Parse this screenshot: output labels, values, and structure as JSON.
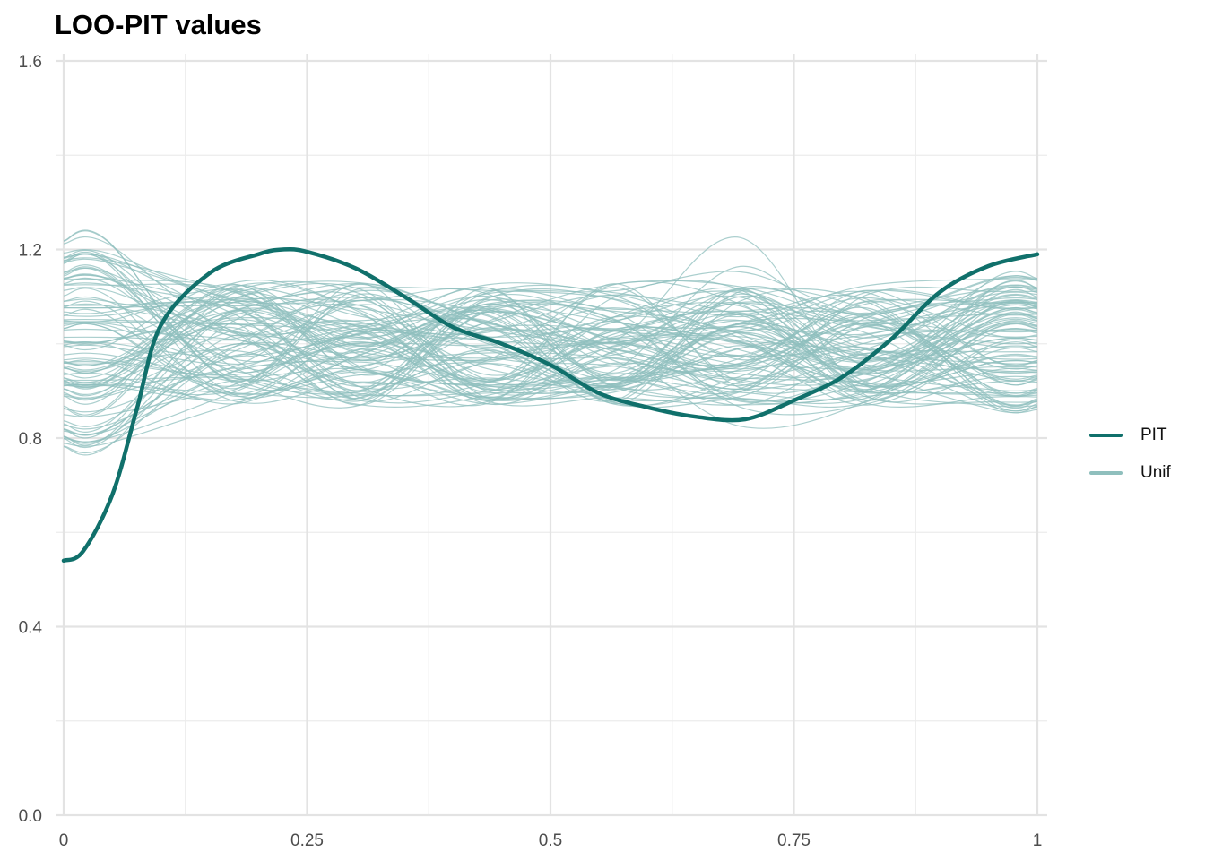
{
  "chart_data": {
    "type": "line",
    "title": "LOO-PIT values",
    "xlabel": "",
    "ylabel": "",
    "xlim": [
      0,
      1
    ],
    "ylim": [
      0,
      1.6
    ],
    "x_ticks": [
      0,
      0.25,
      0.5,
      0.75,
      1
    ],
    "x_tick_labels": [
      "0",
      "0.25",
      "0.5",
      "0.75",
      "1"
    ],
    "y_ticks": [
      0,
      0.4,
      0.8,
      1.2,
      1.6
    ],
    "y_tick_labels": [
      "0.0",
      "0.4",
      "0.8",
      "1.2",
      "1.6"
    ],
    "grid": true,
    "legend_position": "right",
    "legend": [
      {
        "label": "PIT",
        "color": "#10706b"
      },
      {
        "label": "Unif",
        "color": "#8fbfbd"
      }
    ],
    "series": [
      {
        "name": "PIT",
        "color": "#10706b",
        "x": [
          0,
          0.02,
          0.05,
          0.075,
          0.1,
          0.15,
          0.2,
          0.225,
          0.25,
          0.3,
          0.35,
          0.4,
          0.45,
          0.5,
          0.55,
          0.6,
          0.65,
          0.7,
          0.75,
          0.8,
          0.85,
          0.9,
          0.95,
          1.0
        ],
        "y": [
          0.54,
          0.56,
          0.68,
          0.86,
          1.04,
          1.15,
          1.19,
          1.2,
          1.195,
          1.16,
          1.1,
          1.035,
          1.0,
          0.955,
          0.895,
          0.865,
          0.845,
          0.84,
          0.88,
          0.93,
          1.01,
          1.11,
          1.165,
          1.19
        ]
      }
    ],
    "reference_series": {
      "name": "Unif",
      "color": "#8fbfbd",
      "count": 100,
      "x_range": [
        0,
        1
      ],
      "y_range": [
        0.75,
        1.29
      ],
      "center": 1.0
    }
  }
}
